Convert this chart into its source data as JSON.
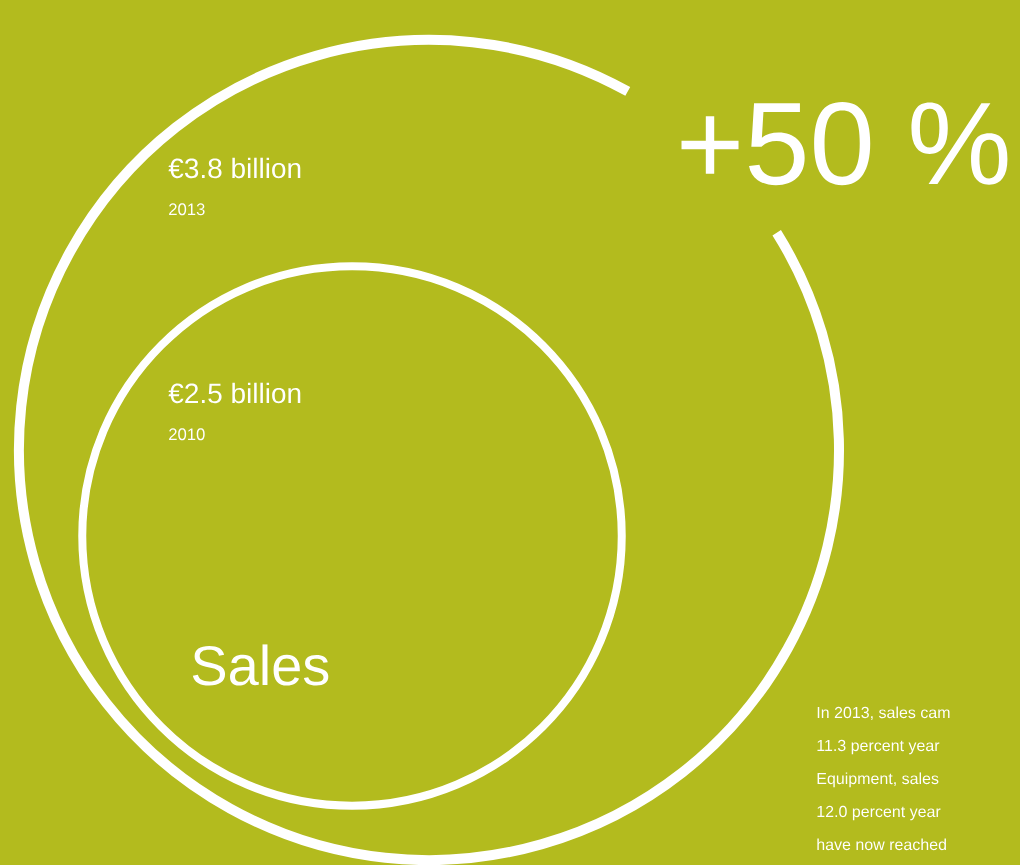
{
  "chart_data": {
    "type": "other",
    "title": "Sales",
    "categories": [
      "2013",
      "2010"
    ],
    "values": [
      3.8,
      2.5
    ],
    "value_labels": [
      "€3.8 billion",
      "€2.5 billion"
    ],
    "colors": [
      "#ffffff",
      "#ffffff"
    ],
    "annotations": [
      "+50 %",
      "In 2013, sales cam",
      "11.3 percent year",
      "Equipment, sales",
      "12.0 percent year",
      "have now reached"
    ]
  }
}
